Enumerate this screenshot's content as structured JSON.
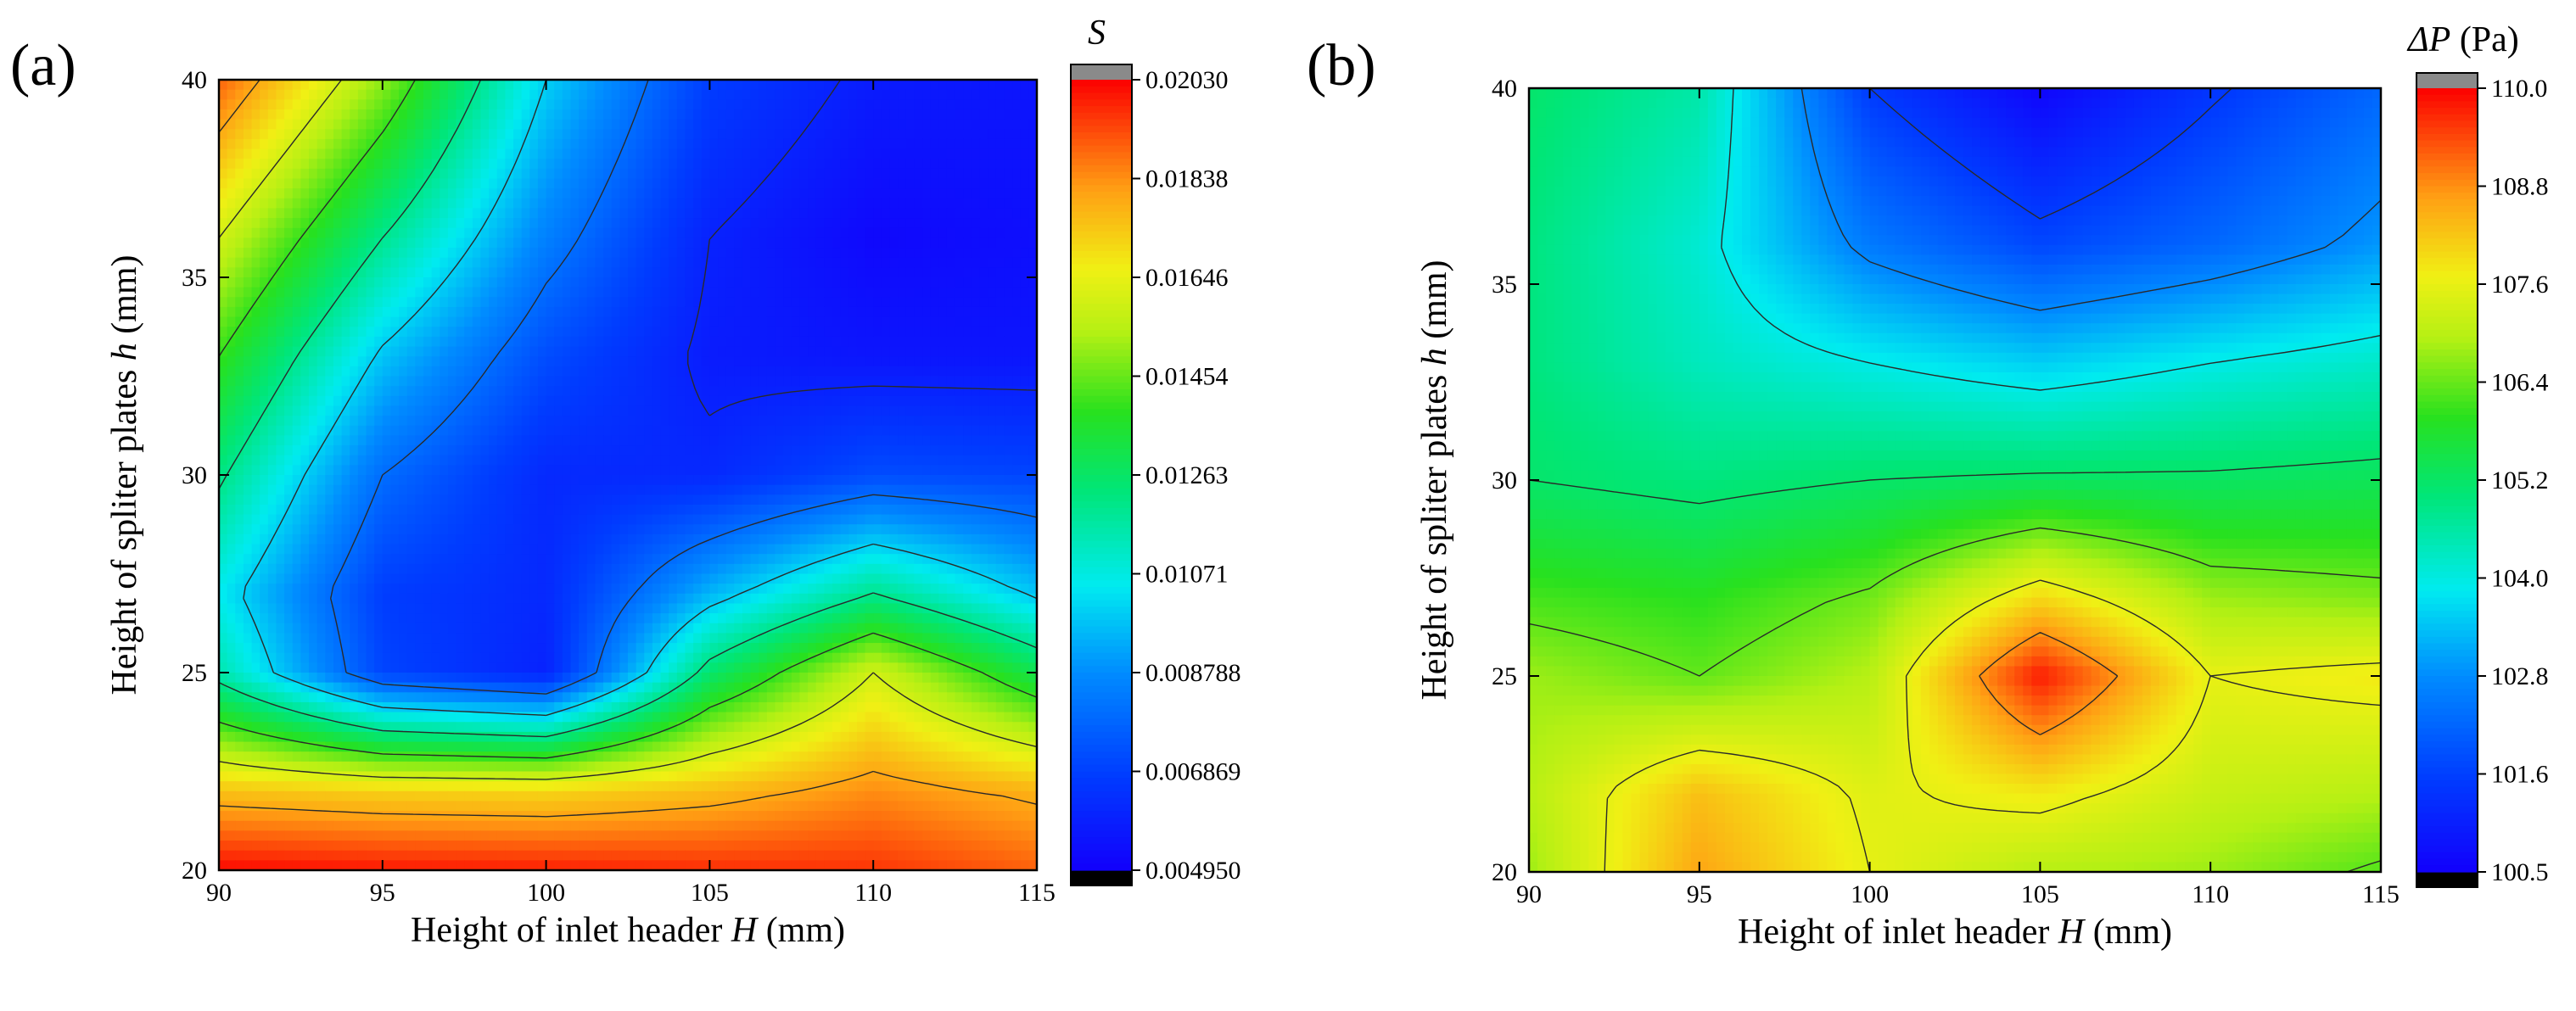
{
  "chart_data": [
    {
      "type": "heatmap",
      "panel": "(a)",
      "colorbar_title": "S",
      "xlabel_prefix": "Height of inlet header ",
      "xlabel_var": "H",
      "xlabel_unit": " (mm)",
      "ylabel_prefix": "Height of spliter plates ",
      "ylabel_var": "h",
      "ylabel_unit": " (mm)",
      "xlim": [
        90,
        115
      ],
      "ylim": [
        20,
        40
      ],
      "x_ticks": [
        "90",
        "95",
        "100",
        "105",
        "110",
        "115"
      ],
      "y_ticks": [
        "20",
        "25",
        "30",
        "35",
        "40"
      ],
      "colorbar_range": [
        0.00495,
        0.0203
      ],
      "colorbar_ticks": [
        "0.004950",
        "0.006869",
        "0.008788",
        "0.01071",
        "0.01263",
        "0.01454",
        "0.01646",
        "0.01838",
        "0.02030"
      ],
      "x": [
        90,
        95,
        100,
        105,
        110,
        115
      ],
      "y": [
        20,
        22,
        25,
        27,
        30,
        33,
        36,
        40
      ],
      "z": [
        [
          0.0202,
          0.02,
          0.0199,
          0.0197,
          0.0196,
          0.019
        ],
        [
          0.0175,
          0.0172,
          0.0171,
          0.0176,
          0.0184,
          0.0178
        ],
        [
          0.0115,
          0.007,
          0.006,
          0.0125,
          0.016,
          0.013
        ],
        [
          0.0105,
          0.0068,
          0.0062,
          0.0095,
          0.012,
          0.0098
        ],
        [
          0.0122,
          0.008,
          0.0062,
          0.0062,
          0.0072,
          0.007
        ],
        [
          0.014,
          0.0098,
          0.0072,
          0.0058,
          0.0056,
          0.0056
        ],
        [
          0.016,
          0.012,
          0.0085,
          0.006,
          0.0052,
          0.0054
        ],
        [
          0.019,
          0.015,
          0.01,
          0.0068,
          0.0058,
          0.0056
        ]
      ],
      "contour_levels": [
        0.006,
        0.008,
        0.01,
        0.012,
        0.014,
        0.016,
        0.018
      ]
    },
    {
      "type": "heatmap",
      "panel": "(b)",
      "colorbar_title": "ΔP",
      "colorbar_unit": " (Pa)",
      "xlabel_prefix": "Height of inlet header ",
      "xlabel_var": "H",
      "xlabel_unit": "  (mm)",
      "ylabel_prefix": "Height of spliter plates ",
      "ylabel_var": "h",
      "ylabel_unit": " (mm)",
      "xlim": [
        90,
        115
      ],
      "ylim": [
        20,
        40
      ],
      "x_ticks": [
        "90",
        "95",
        "100",
        "105",
        "110",
        "115"
      ],
      "y_ticks": [
        "20",
        "25",
        "30",
        "35",
        "40"
      ],
      "colorbar_range": [
        100.5,
        110.0
      ],
      "colorbar_ticks": [
        "100.5",
        "101.6",
        "102.8",
        "104.0",
        "105.2",
        "106.4",
        "107.6",
        "108.8",
        "110.0"
      ],
      "x": [
        90,
        95,
        100,
        105,
        110,
        115
      ],
      "y": [
        20,
        22,
        25,
        27,
        30,
        33,
        36,
        40
      ],
      "z": [
        [
          106.8,
          108.6,
          107.6,
          107.0,
          106.8,
          106.3
        ],
        [
          107.0,
          108.3,
          107.5,
          107.8,
          107.2,
          107.0
        ],
        [
          106.8,
          106.4,
          107.0,
          109.8,
          107.6,
          107.8
        ],
        [
          106.2,
          106.0,
          106.5,
          108.0,
          106.8,
          106.6
        ],
        [
          105.2,
          105.0,
          105.2,
          105.3,
          105.3,
          105.4
        ],
        [
          105.0,
          104.4,
          104.0,
          103.6,
          104.0,
          104.3
        ],
        [
          105.0,
          104.2,
          102.6,
          101.8,
          102.3,
          103.0
        ],
        [
          105.2,
          104.6,
          101.6,
          100.6,
          101.5,
          102.3
        ]
      ],
      "contour_levels": [
        101.6,
        102.8,
        104.0,
        105.2,
        106.4,
        107.6,
        108.8
      ]
    }
  ]
}
